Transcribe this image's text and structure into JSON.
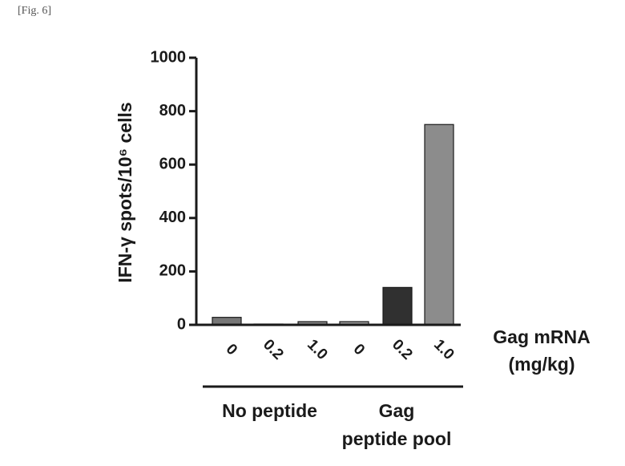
{
  "figure_label": "[Fig. 6]",
  "chart_data": {
    "type": "bar",
    "ylabel": "IFN-γ spots/10⁶ cells",
    "ylim": [
      0,
      1000
    ],
    "yticks": [
      "0",
      "200",
      "400",
      "600",
      "800",
      "1000"
    ],
    "x_axis_title": [
      "Gag mRNA",
      "(mg/kg)"
    ],
    "categories": [
      "0",
      "0.2",
      "1.0",
      "0",
      "0.2",
      "1.0"
    ],
    "values": [
      28,
      3,
      12,
      12,
      140,
      750
    ],
    "bar_colors": [
      "#777777",
      "#2e2e2e",
      "#8a8a8a",
      "#9a9a9a",
      "#303030",
      "#8c8c8c"
    ],
    "groups": [
      {
        "label": [
          "No peptide"
        ],
        "bars": [
          0,
          1,
          2
        ]
      },
      {
        "label": [
          "Gag",
          "peptide pool"
        ],
        "bars": [
          3,
          4,
          5
        ]
      }
    ],
    "grid": false,
    "legend": "none"
  }
}
